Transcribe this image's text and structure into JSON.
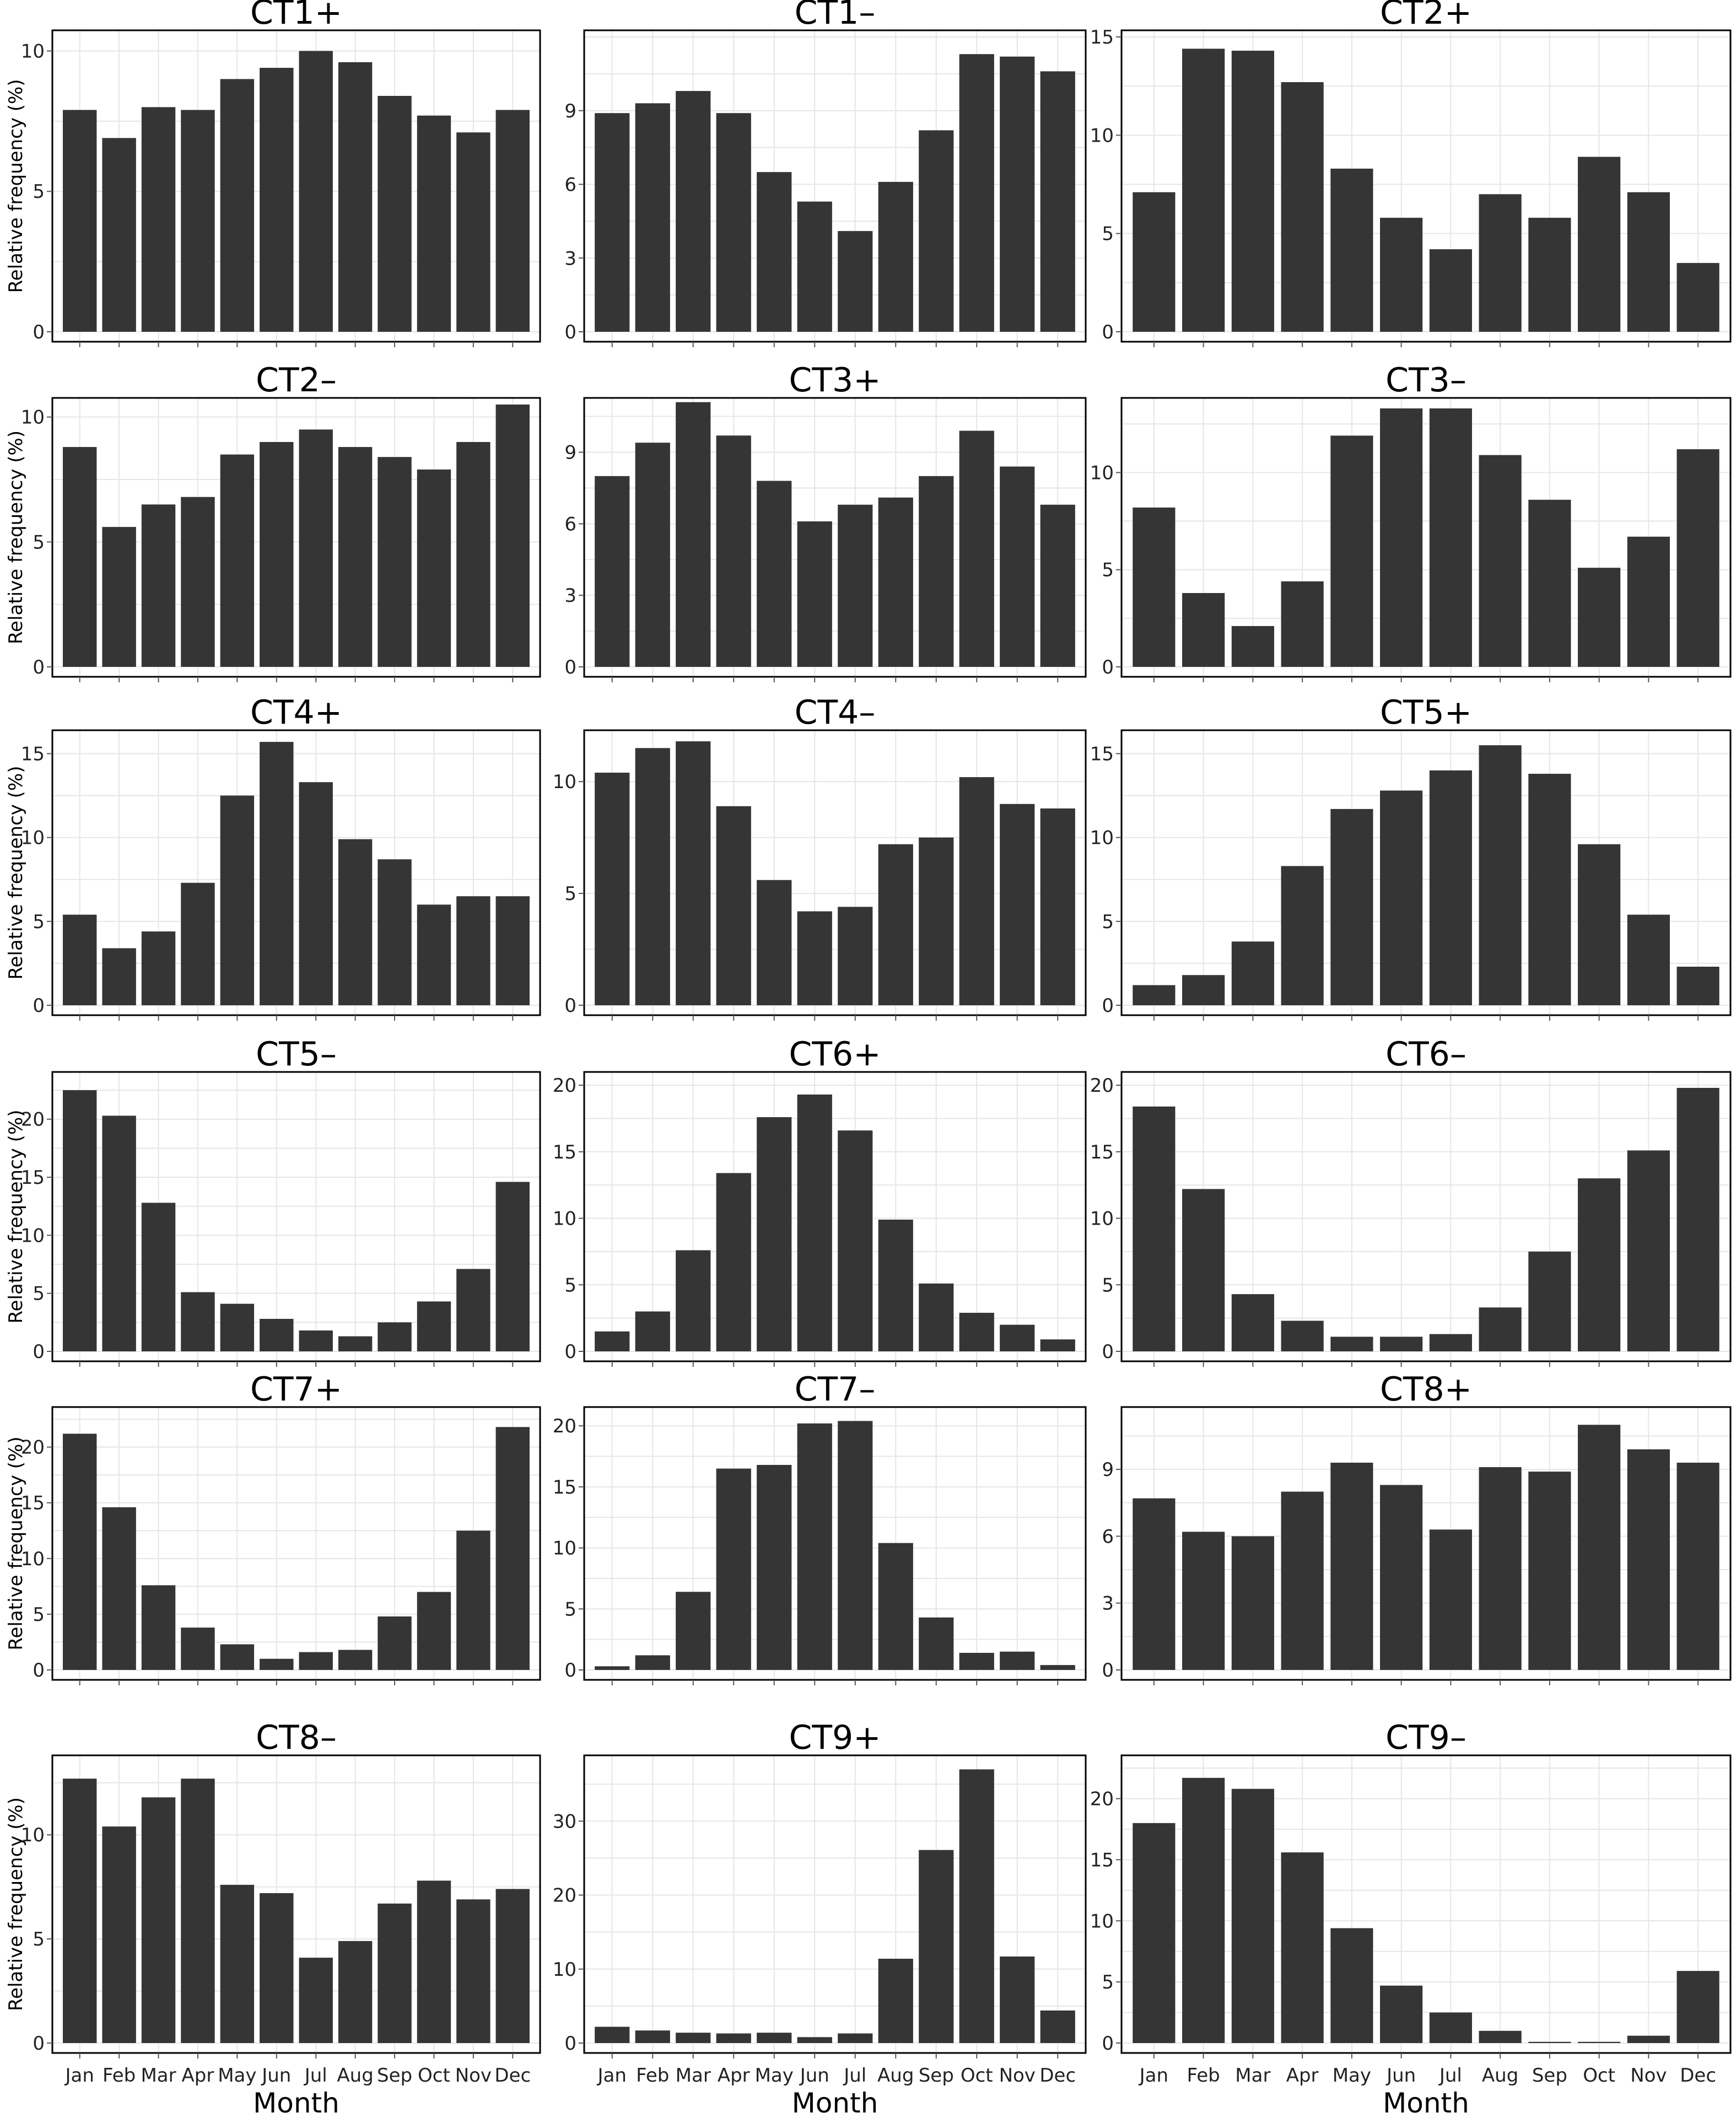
{
  "months": [
    "Jan",
    "Feb",
    "Mar",
    "Apr",
    "May",
    "Jun",
    "Jul",
    "Aug",
    "Sep",
    "Oct",
    "Nov",
    "Dec"
  ],
  "months_col2": [
    "Jan",
    "Feb",
    "Mar",
    "Apr",
    "May",
    "Jun",
    "Jul",
    "Aug",
    "Sep",
    "Oct",
    "Nov",
    "Dec"
  ],
  "ylabel": "Relative frequency (%)",
  "xlabel": "Month",
  "colors": {
    "bar": "#353535",
    "grid": "#e6e6e6",
    "frame": "#000000"
  },
  "chart_data": [
    {
      "type": "bar",
      "title": "CT1+",
      "ylim": [
        0,
        10.5
      ],
      "yticks": [
        0,
        5,
        10
      ],
      "values": [
        7.9,
        6.9,
        8.0,
        7.9,
        9.0,
        9.4,
        10.0,
        9.6,
        8.4,
        7.7,
        7.1,
        7.9
      ]
    },
    {
      "type": "bar",
      "title": "CT1–",
      "ylim": [
        0,
        12
      ],
      "yticks": [
        0,
        3,
        6,
        9
      ],
      "values": [
        8.9,
        9.3,
        9.8,
        8.9,
        6.5,
        5.3,
        4.1,
        6.1,
        8.2,
        11.3,
        11.2,
        10.6
      ]
    },
    {
      "type": "bar",
      "title": "CT2+",
      "ylim": [
        0,
        15
      ],
      "yticks": [
        0,
        5,
        10,
        15
      ],
      "values": [
        7.1,
        14.4,
        14.3,
        12.7,
        8.3,
        5.8,
        4.2,
        7.0,
        5.8,
        8.9,
        7.1,
        3.5
      ]
    },
    {
      "type": "bar",
      "title": "CT2–",
      "ylim": [
        0,
        10.5
      ],
      "yticks": [
        0,
        5,
        10
      ],
      "values": [
        8.8,
        5.6,
        6.5,
        6.8,
        8.5,
        9.0,
        9.5,
        8.8,
        8.4,
        7.9,
        9.0,
        10.5
      ]
    },
    {
      "type": "bar",
      "title": "CT3+",
      "ylim": [
        0,
        11
      ],
      "yticks": [
        0,
        3,
        6,
        9
      ],
      "values": [
        8.0,
        9.4,
        11.1,
        9.7,
        7.8,
        6.1,
        6.8,
        7.1,
        8.0,
        9.9,
        8.4,
        6.8
      ]
    },
    {
      "type": "bar",
      "title": "CT3–",
      "ylim": [
        0,
        13.5
      ],
      "yticks": [
        0,
        5,
        10
      ],
      "values": [
        8.2,
        3.8,
        2.1,
        4.4,
        11.9,
        13.3,
        13.3,
        10.9,
        8.6,
        5.1,
        6.7,
        11.2
      ]
    },
    {
      "type": "bar",
      "title": "CT4+",
      "ylim": [
        0,
        16
      ],
      "yticks": [
        0,
        5,
        10,
        15
      ],
      "values": [
        5.4,
        3.4,
        4.4,
        7.3,
        12.5,
        15.7,
        13.3,
        9.9,
        8.7,
        6.0,
        6.5,
        6.5
      ]
    },
    {
      "type": "bar",
      "title": "CT4–",
      "ylim": [
        0,
        12
      ],
      "yticks": [
        0,
        5,
        10
      ],
      "values": [
        10.4,
        11.5,
        11.8,
        8.9,
        5.6,
        4.2,
        4.4,
        7.2,
        7.5,
        10.2,
        9.0,
        8.8
      ]
    },
    {
      "type": "bar",
      "title": "CT5+",
      "ylim": [
        0,
        16
      ],
      "yticks": [
        0,
        5,
        10,
        15
      ],
      "values": [
        1.2,
        1.8,
        3.8,
        8.3,
        11.7,
        12.8,
        14.0,
        15.5,
        13.8,
        9.6,
        5.4,
        2.3
      ]
    },
    {
      "type": "bar",
      "title": "CT5–",
      "ylim": [
        0,
        23.5
      ],
      "yticks": [
        0,
        5,
        10,
        15,
        20
      ],
      "values": [
        22.5,
        20.3,
        12.8,
        5.1,
        4.1,
        2.8,
        1.8,
        1.3,
        2.5,
        4.3,
        7.1,
        14.6
      ]
    },
    {
      "type": "bar",
      "title": "CT6+",
      "ylim": [
        0,
        20.5
      ],
      "yticks": [
        0,
        5,
        10,
        15,
        20
      ],
      "values": [
        1.5,
        3.0,
        7.6,
        13.4,
        17.6,
        19.3,
        16.6,
        9.9,
        5.1,
        2.9,
        2.0,
        0.9
      ]
    },
    {
      "type": "bar",
      "title": "CT6–",
      "ylim": [
        0,
        20.5
      ],
      "yticks": [
        0,
        5,
        10,
        15,
        20
      ],
      "values": [
        18.4,
        12.2,
        4.3,
        2.3,
        1.1,
        1.1,
        1.3,
        3.3,
        7.5,
        13.0,
        15.1,
        19.8
      ]
    },
    {
      "type": "bar",
      "title": "CT7+",
      "ylim": [
        0,
        23
      ],
      "yticks": [
        0,
        5,
        10,
        15,
        20
      ],
      "values": [
        21.2,
        14.6,
        7.6,
        3.8,
        2.3,
        1.0,
        1.6,
        1.8,
        4.8,
        7.0,
        12.5,
        21.8
      ]
    },
    {
      "type": "bar",
      "title": "CT7–",
      "ylim": [
        0,
        21
      ],
      "yticks": [
        0,
        5,
        10,
        15,
        20
      ],
      "values": [
        0.3,
        1.2,
        6.4,
        16.5,
        16.8,
        20.2,
        20.4,
        10.4,
        4.3,
        1.4,
        1.5,
        0.4
      ]
    },
    {
      "type": "bar",
      "title": "CT8+",
      "ylim": [
        0,
        11.5
      ],
      "yticks": [
        0,
        3,
        6,
        9
      ],
      "values": [
        7.7,
        6.2,
        6.0,
        8.0,
        9.3,
        8.3,
        6.3,
        9.1,
        8.9,
        11.0,
        9.9,
        9.3
      ]
    },
    {
      "type": "bar",
      "title": "CT8–",
      "ylim": [
        0,
        13.5
      ],
      "yticks": [
        0,
        5,
        10
      ],
      "values": [
        12.7,
        10.4,
        11.8,
        12.7,
        7.6,
        7.2,
        4.1,
        4.9,
        6.7,
        7.8,
        6.9,
        7.4
      ]
    },
    {
      "type": "bar",
      "title": "CT9+",
      "ylim": [
        0,
        38
      ],
      "yticks": [
        0,
        10,
        20,
        30
      ],
      "values": [
        2.2,
        1.7,
        1.4,
        1.3,
        1.4,
        0.8,
        1.3,
        11.4,
        26.1,
        37.0,
        11.7,
        4.4
      ]
    },
    {
      "type": "bar",
      "title": "CT9–",
      "ylim": [
        0,
        23
      ],
      "yticks": [
        0,
        5,
        10,
        15,
        20
      ],
      "values": [
        18.0,
        21.7,
        20.8,
        15.6,
        9.4,
        4.7,
        2.5,
        1.0,
        0.1,
        0.1,
        0.6,
        5.9
      ]
    }
  ]
}
